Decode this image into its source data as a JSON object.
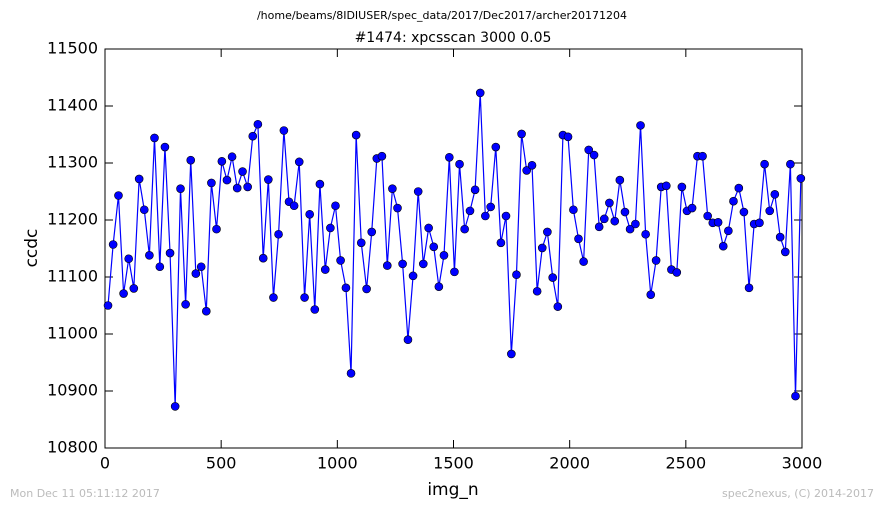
{
  "chart_data": {
    "type": "line",
    "title": "/home/beams/8IDIUSER/spec_data/2017/Dec2017/archer20171204",
    "subtitle": "#1474: xpcsscan 3000 0.05",
    "xlabel": "img_n",
    "ylabel": "ccdc",
    "footer_left": "Mon Dec 11 05:11:12 2017",
    "footer_right": "spec2nexus, (C) 2014-2017",
    "xlim": [
      0,
      3000
    ],
    "xticks": [
      0,
      500,
      1000,
      1500,
      2000,
      2500,
      3000
    ],
    "ylim": [
      10800,
      11500
    ],
    "yticks": [
      10800,
      10900,
      11000,
      11100,
      11200,
      11300,
      11400,
      11500
    ],
    "x": [
      13,
      35,
      58,
      80,
      102,
      124,
      147,
      169,
      191,
      213,
      236,
      258,
      280,
      302,
      325,
      347,
      369,
      391,
      414,
      436,
      458,
      480,
      503,
      525,
      547,
      569,
      592,
      614,
      636,
      658,
      681,
      703,
      725,
      747,
      770,
      792,
      814,
      836,
      859,
      881,
      903,
      925,
      948,
      970,
      992,
      1014,
      1037,
      1059,
      1081,
      1103,
      1126,
      1148,
      1170,
      1192,
      1215,
      1237,
      1259,
      1281,
      1304,
      1326,
      1348,
      1370,
      1393,
      1415,
      1437,
      1459,
      1482,
      1504,
      1526,
      1548,
      1571,
      1593,
      1615,
      1637,
      1660,
      1682,
      1704,
      1726,
      1749,
      1771,
      1793,
      1815,
      1838,
      1860,
      1882,
      1904,
      1927,
      1949,
      1971,
      1993,
      2016,
      2038,
      2060,
      2082,
      2105,
      2127,
      2149,
      2171,
      2194,
      2216,
      2238,
      2260,
      2283,
      2305,
      2327,
      2349,
      2372,
      2394,
      2416,
      2438,
      2461,
      2483,
      2505,
      2527,
      2550,
      2572,
      2594,
      2616,
      2639,
      2661,
      2683,
      2705,
      2728,
      2750,
      2772,
      2794,
      2817,
      2839,
      2861,
      2883,
      2906,
      2928,
      2950,
      2972,
      2995
    ],
    "series": [
      {
        "name": "ccdc",
        "color": "#0000ff",
        "values": [
          11050,
          11157,
          11243,
          11071,
          11132,
          11080,
          11272,
          11218,
          11138,
          11344,
          11118,
          11328,
          11142,
          10873,
          11255,
          11052,
          11305,
          11106,
          11118,
          11040,
          11265,
          11184,
          11303,
          11270,
          11311,
          11256,
          11285,
          11258,
          11347,
          11368,
          11133,
          11271,
          11064,
          11175,
          11357,
          11232,
          11225,
          11302,
          11064,
          11210,
          11043,
          11263,
          11113,
          11186,
          11225,
          11129,
          11081,
          10931,
          11349,
          11160,
          11079,
          11179,
          11308,
          11312,
          11120,
          11255,
          11221,
          11123,
          10990,
          11102,
          11250,
          11123,
          11186,
          11153,
          11083,
          11138,
          11310,
          11109,
          11298,
          11184,
          11216,
          11253,
          11423,
          11207,
          11223,
          11328,
          11160,
          11207,
          10965,
          11104,
          11351,
          11287,
          11296,
          11075,
          11151,
          11179,
          11099,
          11048,
          11349,
          11346,
          11218,
          11167,
          11127,
          11323,
          11314,
          11188,
          11202,
          11230,
          11198,
          11270,
          11214,
          11184,
          11193,
          11366,
          11175,
          11069,
          11129,
          11258,
          11260,
          11113,
          11108,
          11258,
          11216,
          11221,
          11312,
          11312,
          11207,
          11195,
          11196,
          11154,
          11181,
          11233,
          11256,
          11214,
          11081,
          11193,
          11195,
          11298,
          11216,
          11245,
          11170,
          11144,
          11298,
          10891,
          11273
        ]
      }
    ]
  }
}
